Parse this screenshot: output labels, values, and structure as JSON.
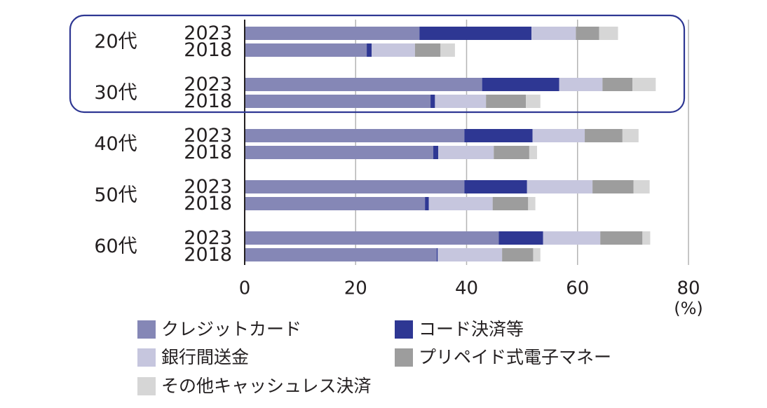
{
  "chart_data": {
    "type": "bar",
    "orientation": "horizontal",
    "stacked": true,
    "unit": "(%)",
    "xlim": [
      0,
      80
    ],
    "xticks": [
      0,
      20,
      40,
      60,
      80
    ],
    "highlighted_groups": [
      "20代",
      "30代"
    ],
    "series": [
      {
        "name": "クレジットカード",
        "color": "#8587b6"
      },
      {
        "name": "コード決済等",
        "color": "#2e3793"
      },
      {
        "name": "銀行間送金",
        "color": "#c6c6de"
      },
      {
        "name": "プリペイド式電子マネー",
        "color": "#9d9d9d"
      },
      {
        "name": "その他キャッシュレス決済",
        "color": "#d6d6d6"
      }
    ],
    "groups": [
      {
        "label": "20代",
        "rows": [
          {
            "year": "2023",
            "values": [
              31.5,
              20.2,
              8.0,
              4.2,
              3.4
            ]
          },
          {
            "year": "2018",
            "values": [
              22.0,
              0.9,
              7.8,
              4.6,
              2.6
            ]
          }
        ]
      },
      {
        "label": "30代",
        "rows": [
          {
            "year": "2023",
            "values": [
              42.8,
              13.9,
              7.8,
              5.4,
              4.2
            ]
          },
          {
            "year": "2018",
            "values": [
              33.5,
              0.8,
              9.2,
              7.2,
              2.6
            ]
          }
        ]
      },
      {
        "label": "40代",
        "rows": [
          {
            "year": "2023",
            "values": [
              39.6,
              12.3,
              9.4,
              6.8,
              2.9
            ]
          },
          {
            "year": "2018",
            "values": [
              34.0,
              0.9,
              10.0,
              6.4,
              1.4
            ]
          }
        ]
      },
      {
        "label": "50代",
        "rows": [
          {
            "year": "2023",
            "values": [
              39.6,
              11.3,
              11.8,
              7.4,
              2.9
            ]
          },
          {
            "year": "2018",
            "values": [
              32.5,
              0.7,
              11.5,
              6.4,
              1.3
            ]
          }
        ]
      },
      {
        "label": "60代",
        "rows": [
          {
            "year": "2023",
            "values": [
              45.8,
              8.0,
              10.3,
              7.6,
              1.4
            ]
          },
          {
            "year": "2018",
            "values": [
              34.6,
              0.2,
              11.6,
              5.6,
              1.3
            ]
          }
        ]
      }
    ]
  }
}
